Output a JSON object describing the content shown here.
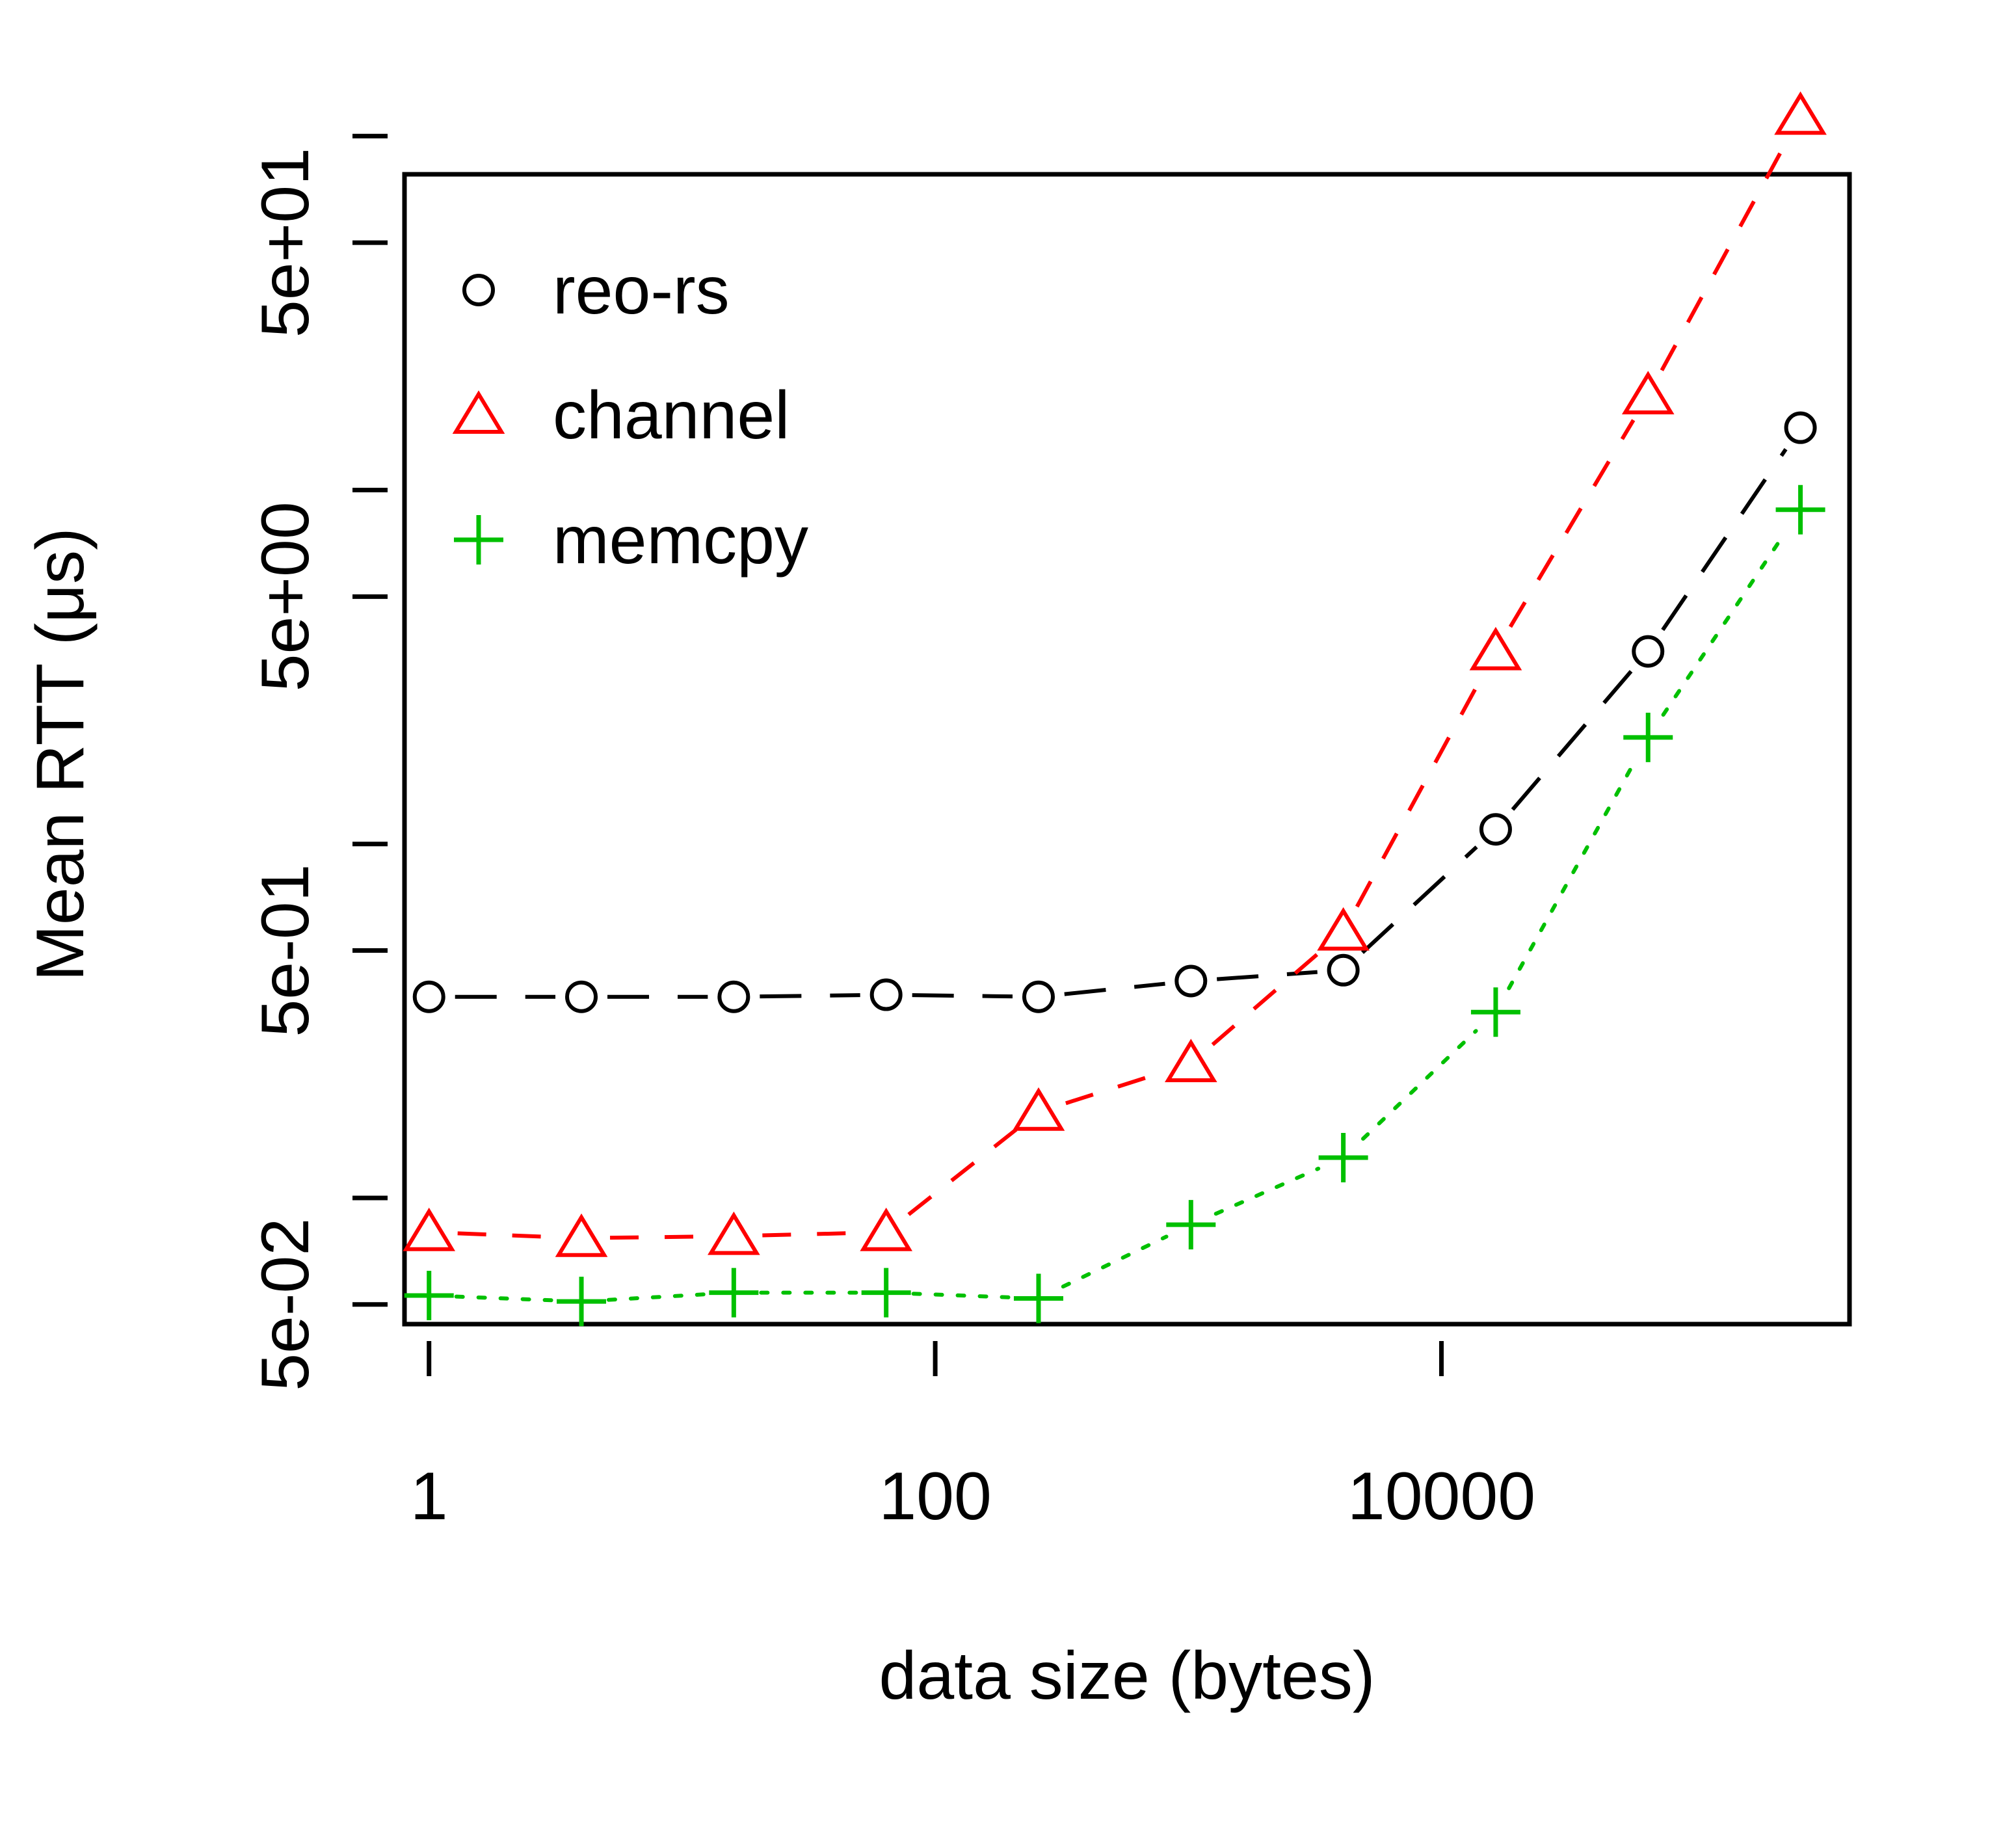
{
  "chart_data": {
    "type": "line",
    "xlabel": "data size (bytes)",
    "ylabel": "Mean RTT (μs)",
    "x_scale": "log",
    "y_scale": "log",
    "x_ticks": [
      {
        "value": 1,
        "label": "1"
      },
      {
        "value": 100,
        "label": "100"
      },
      {
        "value": 10000,
        "label": "10000"
      }
    ],
    "y_ticks": [
      {
        "value": 0.05,
        "label": "5e-02"
      },
      {
        "value": 0.1,
        "label": ""
      },
      {
        "value": 0.5,
        "label": "5e-01"
      },
      {
        "value": 1,
        "label": ""
      },
      {
        "value": 5,
        "label": "5e+00"
      },
      {
        "value": 10,
        "label": ""
      },
      {
        "value": 50,
        "label": "5e+01"
      },
      {
        "value": 100,
        "label": ""
      }
    ],
    "xlim": [
      0.8,
      409600
    ],
    "ylim": [
      0.044,
      78
    ],
    "legend_position": "top-left",
    "series": [
      {
        "name": "reo-rs",
        "color": "#000000",
        "marker": "circle",
        "dash": "long-dash",
        "x": [
          1,
          4,
          16,
          64,
          256,
          1024,
          4096,
          16384,
          65536,
          262144
        ],
        "y": [
          0.37,
          0.37,
          0.37,
          0.375,
          0.37,
          0.41,
          0.44,
          1.1,
          3.5,
          15
        ]
      },
      {
        "name": "channel",
        "color": "#ff0000",
        "marker": "triangle",
        "dash": "dash",
        "x": [
          1,
          4,
          16,
          64,
          256,
          1024,
          4096,
          16384,
          65536,
          262144
        ],
        "y": [
          0.08,
          0.077,
          0.078,
          0.08,
          0.175,
          0.24,
          0.565,
          3.5,
          18.5,
          114
        ]
      },
      {
        "name": "memcpy",
        "color": "#00c000",
        "marker": "plus",
        "dash": "dot",
        "x": [
          1,
          4,
          16,
          64,
          256,
          1024,
          4096,
          16384,
          65536,
          262144
        ],
        "y": [
          0.053,
          0.051,
          0.054,
          0.054,
          0.052,
          0.084,
          0.13,
          0.335,
          2.0,
          8.8
        ]
      }
    ]
  }
}
